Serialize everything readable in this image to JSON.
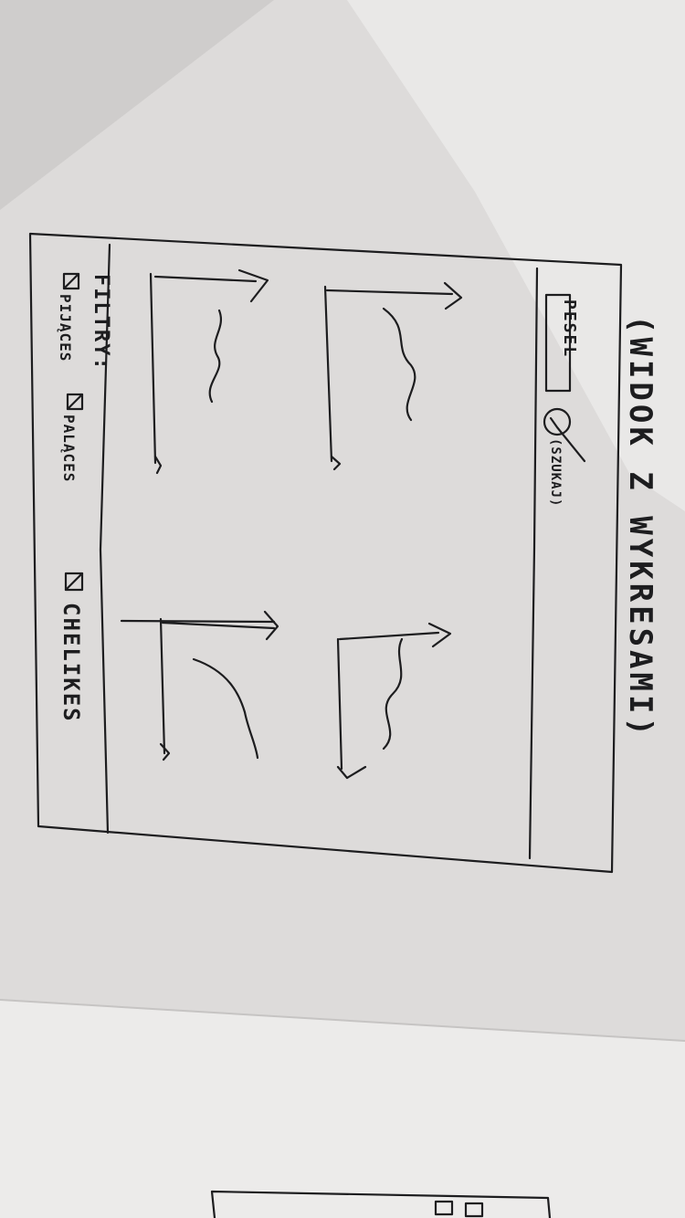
{
  "sketch": {
    "title": "(WIDOK Z WYKRESAMI)",
    "search_field_label": "PESEL",
    "search_button_label": "(SZUKAJ)",
    "filters_label": "FILTRY:",
    "filter_options": [
      "PIJĄCES",
      "PALĄCES",
      "CHELIKES"
    ]
  }
}
